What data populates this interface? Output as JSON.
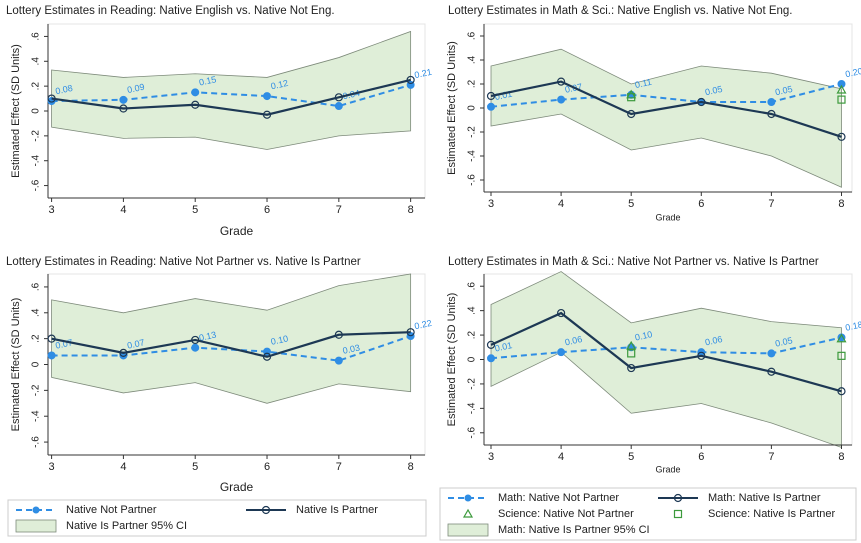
{
  "chart_data": [
    {
      "type": "line",
      "title": "Lottery Estimates in Reading: Native English vs. Native Not Eng.",
      "xlabel": "Grade",
      "ylabel": "Estimated Effect (SD Units)",
      "x": [
        3,
        4,
        5,
        6,
        7,
        8
      ],
      "xlim": [
        2.95,
        8.2
      ],
      "xticks": [
        3,
        4,
        5,
        6,
        7,
        8
      ],
      "ylim": [
        -0.7,
        0.7
      ],
      "yticks": [
        {
          "value": 0.6,
          "label": ".6"
        },
        {
          "value": 0.4,
          "label": ".4"
        },
        {
          "value": 0.2,
          "label": ".2"
        },
        0,
        {
          "value": -0.2,
          "label": "-.2"
        },
        {
          "value": -0.4,
          "label": "-.4"
        },
        {
          "value": -0.6,
          "label": "-.6"
        }
      ],
      "series": [
        {
          "kind": "band",
          "color": "#dfeed8",
          "upper": [
            0.33,
            0.27,
            0.3,
            0.27,
            0.43,
            0.64
          ],
          "lower": [
            -0.13,
            -0.22,
            -0.21,
            -0.31,
            -0.2,
            -0.16
          ]
        },
        {
          "kind": "dashed",
          "color": "#2f8de4",
          "values": [
            0.08,
            0.09,
            0.15,
            0.12,
            0.04,
            0.21
          ],
          "value_labels": [
            "0.08",
            "0.09",
            "0.15",
            "0.12",
            "0.04",
            "0.21"
          ]
        },
        {
          "kind": "solid",
          "color": "#1d3854",
          "values": [
            0.1,
            0.02,
            0.05,
            -0.03,
            0.11,
            0.25
          ]
        }
      ]
    },
    {
      "type": "line",
      "title": "Lottery Estimates in Math & Sci.: Native English vs. Native Not Eng.",
      "xlabel": "Grade",
      "ylabel": "Estimated Effect (SD Units)",
      "x": [
        3,
        4,
        5,
        6,
        7,
        8
      ],
      "xlim": [
        2.9,
        8.15
      ],
      "xticks": [
        3,
        4,
        5,
        6,
        7,
        8
      ],
      "ylim": [
        -0.7,
        0.7
      ],
      "yticks": [
        {
          "value": 0.6,
          "label": ".6"
        },
        {
          "value": 0.4,
          "label": ".4"
        },
        {
          "value": 0.2,
          "label": ".2"
        },
        0,
        {
          "value": -0.2,
          "label": "-.2"
        },
        {
          "value": -0.4,
          "label": "-.4"
        },
        {
          "value": -0.6,
          "label": "-.6"
        }
      ],
      "series": [
        {
          "kind": "band",
          "color": "#dfeed8",
          "upper": [
            0.35,
            0.49,
            0.2,
            0.35,
            0.29,
            0.16
          ],
          "lower": [
            -0.15,
            -0.05,
            -0.35,
            -0.25,
            -0.4,
            -0.66
          ]
        },
        {
          "kind": "dashed",
          "color": "#2f8de4",
          "values": [
            0.01,
            0.07,
            0.11,
            0.05,
            0.05,
            0.2
          ],
          "value_labels": [
            "0.01",
            "0.07",
            "0.11",
            "0.05",
            "0.05",
            "0.20"
          ]
        },
        {
          "kind": "solid",
          "color": "#1d3854",
          "values": [
            0.1,
            0.22,
            -0.05,
            0.05,
            -0.05,
            -0.24
          ]
        },
        {
          "kind": "triangle",
          "color": "#3c9a3c",
          "values": [
            null,
            null,
            0.11,
            null,
            null,
            0.15
          ]
        },
        {
          "kind": "square",
          "color": "#3c9a3c",
          "values": [
            null,
            null,
            0.09,
            null,
            null,
            0.07
          ]
        }
      ]
    },
    {
      "type": "line",
      "title": "Lottery Estimates in Reading: Native Not Partner vs. Native Is Partner",
      "xlabel": "Grade",
      "ylabel": "Estimated Effect (SD Units)",
      "x": [
        3,
        4,
        5,
        6,
        7,
        8
      ],
      "xlim": [
        2.95,
        8.2
      ],
      "xticks": [
        3,
        4,
        5,
        6,
        7,
        8
      ],
      "ylim": [
        -0.7,
        0.7
      ],
      "yticks": [
        {
          "value": 0.6,
          "label": ".6"
        },
        {
          "value": 0.4,
          "label": ".4"
        },
        {
          "value": 0.2,
          "label": ".2"
        },
        0,
        {
          "value": -0.2,
          "label": "-.2"
        },
        {
          "value": -0.4,
          "label": "-.4"
        },
        {
          "value": -0.6,
          "label": "-.6"
        }
      ],
      "legend": "bottom",
      "series": [
        {
          "kind": "band",
          "name": "Native Is Partner 95% CI",
          "color": "#dfeed8",
          "upper": [
            0.5,
            0.4,
            0.51,
            0.42,
            0.61,
            0.7
          ],
          "lower": [
            -0.1,
            -0.22,
            -0.14,
            -0.3,
            -0.15,
            -0.21
          ]
        },
        {
          "kind": "dashed",
          "name": "Native Not Partner",
          "color": "#2f8de4",
          "values": [
            0.07,
            0.07,
            0.13,
            0.1,
            0.03,
            0.22
          ],
          "value_labels": [
            "0.07",
            "0.07",
            "0.13",
            "0.10",
            "0.03",
            "0.22"
          ]
        },
        {
          "kind": "solid",
          "name": "Native Is Partner",
          "color": "#1d3854",
          "values": [
            0.2,
            0.09,
            0.19,
            0.06,
            0.23,
            0.25
          ]
        }
      ]
    },
    {
      "type": "line",
      "title": "Lottery Estimates in Math & Sci.: Native Not Partner vs. Native Is Partner",
      "xlabel": "Grade",
      "ylabel": "Estimated Effect (SD Units)",
      "x": [
        3,
        4,
        5,
        6,
        7,
        8
      ],
      "xlim": [
        2.9,
        8.15
      ],
      "xticks": [
        3,
        4,
        5,
        6,
        7,
        8
      ],
      "ylim": [
        -0.7,
        0.7
      ],
      "yticks": [
        {
          "value": 0.6,
          "label": ".6"
        },
        {
          "value": 0.4,
          "label": ".4"
        },
        {
          "value": 0.2,
          "label": ".2"
        },
        0,
        {
          "value": -0.2,
          "label": "-.2"
        },
        {
          "value": -0.4,
          "label": "-.4"
        },
        {
          "value": -0.6,
          "label": "-.6"
        }
      ],
      "legend": "bottom",
      "series": [
        {
          "kind": "band",
          "name": "Math: Native Is Partner 95% CI",
          "color": "#dfeed8",
          "upper": [
            0.45,
            0.72,
            0.3,
            0.42,
            0.31,
            0.26
          ],
          "lower": [
            -0.22,
            0.06,
            -0.44,
            -0.36,
            -0.52,
            -0.72
          ]
        },
        {
          "kind": "dashed",
          "name": "Math: Native Not Partner",
          "color": "#2f8de4",
          "values": [
            0.01,
            0.06,
            0.1,
            0.06,
            0.05,
            0.18
          ],
          "value_labels": [
            "0.01",
            "0.06",
            "0.10",
            "0.06",
            "0.05",
            "0.18"
          ]
        },
        {
          "kind": "solid",
          "name": "Math: Native Is Partner",
          "color": "#1d3854",
          "values": [
            0.12,
            0.38,
            -0.07,
            0.03,
            -0.1,
            -0.26
          ]
        },
        {
          "kind": "triangle",
          "name": "Science: Native Not Partner",
          "color": "#3c9a3c",
          "values": [
            null,
            null,
            0.11,
            null,
            null,
            0.17
          ]
        },
        {
          "kind": "square",
          "name": "Science: Native Is Partner",
          "color": "#3c9a3c",
          "values": [
            null,
            null,
            0.05,
            null,
            null,
            0.03
          ]
        }
      ]
    }
  ]
}
